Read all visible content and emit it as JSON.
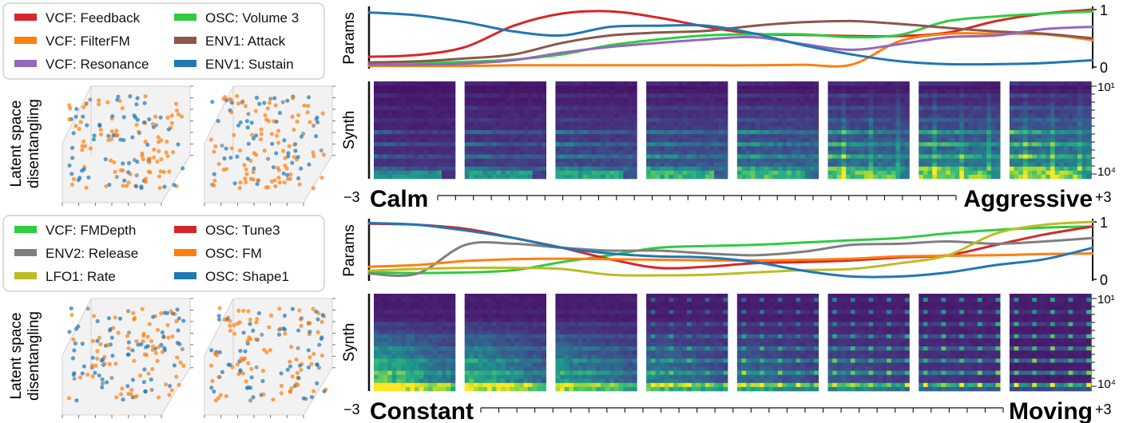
{
  "panels": [
    {
      "legend": [
        {
          "label": "VCF: Feedback",
          "color": "#d62728"
        },
        {
          "label": "OSC: Volume 3",
          "color": "#2ecc40"
        },
        {
          "label": "VCF: FilterFM",
          "color": "#ff7f0e"
        },
        {
          "label": "ENV1: Attack",
          "color": "#8c564b"
        },
        {
          "label": "VCF: Resonance",
          "color": "#9467bd"
        },
        {
          "label": "ENV1: Sustain",
          "color": "#1f77b4"
        }
      ],
      "latent_label": [
        "Latent space",
        "disentangling"
      ],
      "params_label": "Params",
      "synth_label": "Synth",
      "params_ticks": [
        "1",
        "0"
      ],
      "synth_ticks": [
        "10¹",
        "10⁴"
      ],
      "axis_min_label": "−3",
      "axis_max_label": "+3",
      "left_word": "Calm",
      "right_word": "Aggressive"
    },
    {
      "legend": [
        {
          "label": "VCF: FMDepth",
          "color": "#2ecc40"
        },
        {
          "label": "OSC: Tune3",
          "color": "#d62728"
        },
        {
          "label": "ENV2: Release",
          "color": "#7f7f7f"
        },
        {
          "label": "OSC: FM",
          "color": "#ff7f0e"
        },
        {
          "label": "LFO1: Rate",
          "color": "#bcbd22"
        },
        {
          "label": "OSC: Shape1",
          "color": "#1f77b4"
        }
      ],
      "latent_label": [
        "Latent space",
        "disentangling"
      ],
      "params_label": "Params",
      "synth_label": "Synth",
      "params_ticks": [
        "1",
        "0"
      ],
      "synth_ticks": [
        "10¹",
        "10⁴"
      ],
      "axis_min_label": "−3",
      "axis_max_label": "+3",
      "left_word": "Constant",
      "right_word": "Moving"
    }
  ],
  "chart_data": [
    {
      "type": "line",
      "x_range": [
        -3,
        3
      ],
      "ylim": [
        0,
        1
      ],
      "series": [
        {
          "name": "VCF: Feedback",
          "color": "#d62728",
          "values": [
            0.18,
            0.21,
            0.35,
            0.72,
            0.93,
            0.97,
            0.86,
            0.7,
            0.58,
            0.56,
            0.54,
            0.54,
            0.6,
            0.8,
            0.93,
            1.0
          ]
        },
        {
          "name": "OSC: Volume 3",
          "color": "#2ecc40",
          "values": [
            0.06,
            0.07,
            0.09,
            0.13,
            0.22,
            0.38,
            0.48,
            0.55,
            0.57,
            0.57,
            0.52,
            0.56,
            0.8,
            0.88,
            0.93,
            0.97
          ]
        },
        {
          "name": "VCF: FilterFM",
          "color": "#ff7f0e",
          "values": [
            0.02,
            0.02,
            0.02,
            0.03,
            0.03,
            0.03,
            0.03,
            0.03,
            0.03,
            0.04,
            0.04,
            0.45,
            0.58,
            0.58,
            0.57,
            0.47
          ]
        },
        {
          "name": "ENV1: Attack",
          "color": "#8c564b",
          "values": [
            0.08,
            0.1,
            0.15,
            0.22,
            0.42,
            0.55,
            0.6,
            0.63,
            0.72,
            0.78,
            0.8,
            0.75,
            0.68,
            0.62,
            0.58,
            0.5
          ]
        },
        {
          "name": "VCF: Resonance",
          "color": "#9467bd",
          "values": [
            0.04,
            0.04,
            0.06,
            0.12,
            0.25,
            0.35,
            0.42,
            0.48,
            0.52,
            0.4,
            0.3,
            0.4,
            0.52,
            0.55,
            0.66,
            0.7
          ]
        },
        {
          "name": "ENV1: Sustain",
          "color": "#1f77b4",
          "values": [
            0.95,
            0.9,
            0.78,
            0.62,
            0.55,
            0.7,
            0.72,
            0.72,
            0.58,
            0.38,
            0.22,
            0.1,
            0.05,
            0.05,
            0.07,
            0.12
          ]
        }
      ],
      "spectrogram_frames": 8,
      "synth_axis": {
        "top": "10¹",
        "bottom": "10⁴"
      }
    },
    {
      "type": "line",
      "x_range": [
        -3,
        3
      ],
      "ylim": [
        0,
        1
      ],
      "series": [
        {
          "name": "VCF: FMDepth",
          "color": "#2ecc40",
          "values": [
            0.12,
            0.11,
            0.12,
            0.16,
            0.3,
            0.42,
            0.55,
            0.58,
            0.6,
            0.64,
            0.68,
            0.72,
            0.8,
            0.86,
            0.9,
            0.92
          ]
        },
        {
          "name": "OSC: Tune3",
          "color": "#d62728",
          "values": [
            0.97,
            0.95,
            0.88,
            0.72,
            0.55,
            0.35,
            0.2,
            0.22,
            0.28,
            0.3,
            0.33,
            0.38,
            0.42,
            0.6,
            0.78,
            0.92
          ]
        },
        {
          "name": "ENV2: Release",
          "color": "#7f7f7f",
          "values": [
            0.1,
            0.1,
            0.6,
            0.62,
            0.55,
            0.5,
            0.5,
            0.45,
            0.42,
            0.48,
            0.6,
            0.62,
            0.66,
            0.62,
            0.66,
            0.72
          ]
        },
        {
          "name": "OSC: FM",
          "color": "#ff7f0e",
          "values": [
            0.22,
            0.25,
            0.32,
            0.35,
            0.36,
            0.35,
            0.34,
            0.33,
            0.33,
            0.34,
            0.36,
            0.4,
            0.41,
            0.42,
            0.44,
            0.45
          ]
        },
        {
          "name": "LFO1: Rate",
          "color": "#bcbd22",
          "values": [
            0.15,
            0.18,
            0.2,
            0.2,
            0.18,
            0.08,
            0.07,
            0.08,
            0.12,
            0.16,
            0.18,
            0.28,
            0.42,
            0.8,
            0.95,
            1.0
          ]
        },
        {
          "name": "OSC: Shape1",
          "color": "#1f77b4",
          "values": [
            0.98,
            0.95,
            0.85,
            0.72,
            0.55,
            0.45,
            0.4,
            0.38,
            0.3,
            0.15,
            0.05,
            0.05,
            0.12,
            0.25,
            0.35,
            0.55
          ]
        }
      ],
      "spectrogram_frames": 8,
      "synth_axis": {
        "top": "10¹",
        "bottom": "10⁴"
      }
    }
  ]
}
